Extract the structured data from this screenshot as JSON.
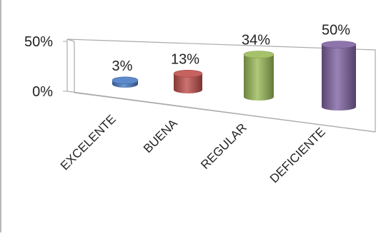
{
  "chart_data": {
    "type": "bar",
    "style": "3d-cylinder",
    "title": "",
    "xlabel": "",
    "ylabel": "",
    "categories": [
      "EXCELENTE",
      "BUENA",
      "REGULAR",
      "DEFICIENTE"
    ],
    "values": [
      3,
      13,
      34,
      50
    ],
    "data_labels": [
      "3%",
      "13%",
      "34%",
      "50%"
    ],
    "ylim": [
      0,
      50
    ],
    "y_ticks": [
      "0%",
      "50%"
    ],
    "grid": false,
    "legend": "none",
    "colors": [
      "#4a7dc4",
      "#c0504d",
      "#9bbb59",
      "#8064a2"
    ]
  }
}
